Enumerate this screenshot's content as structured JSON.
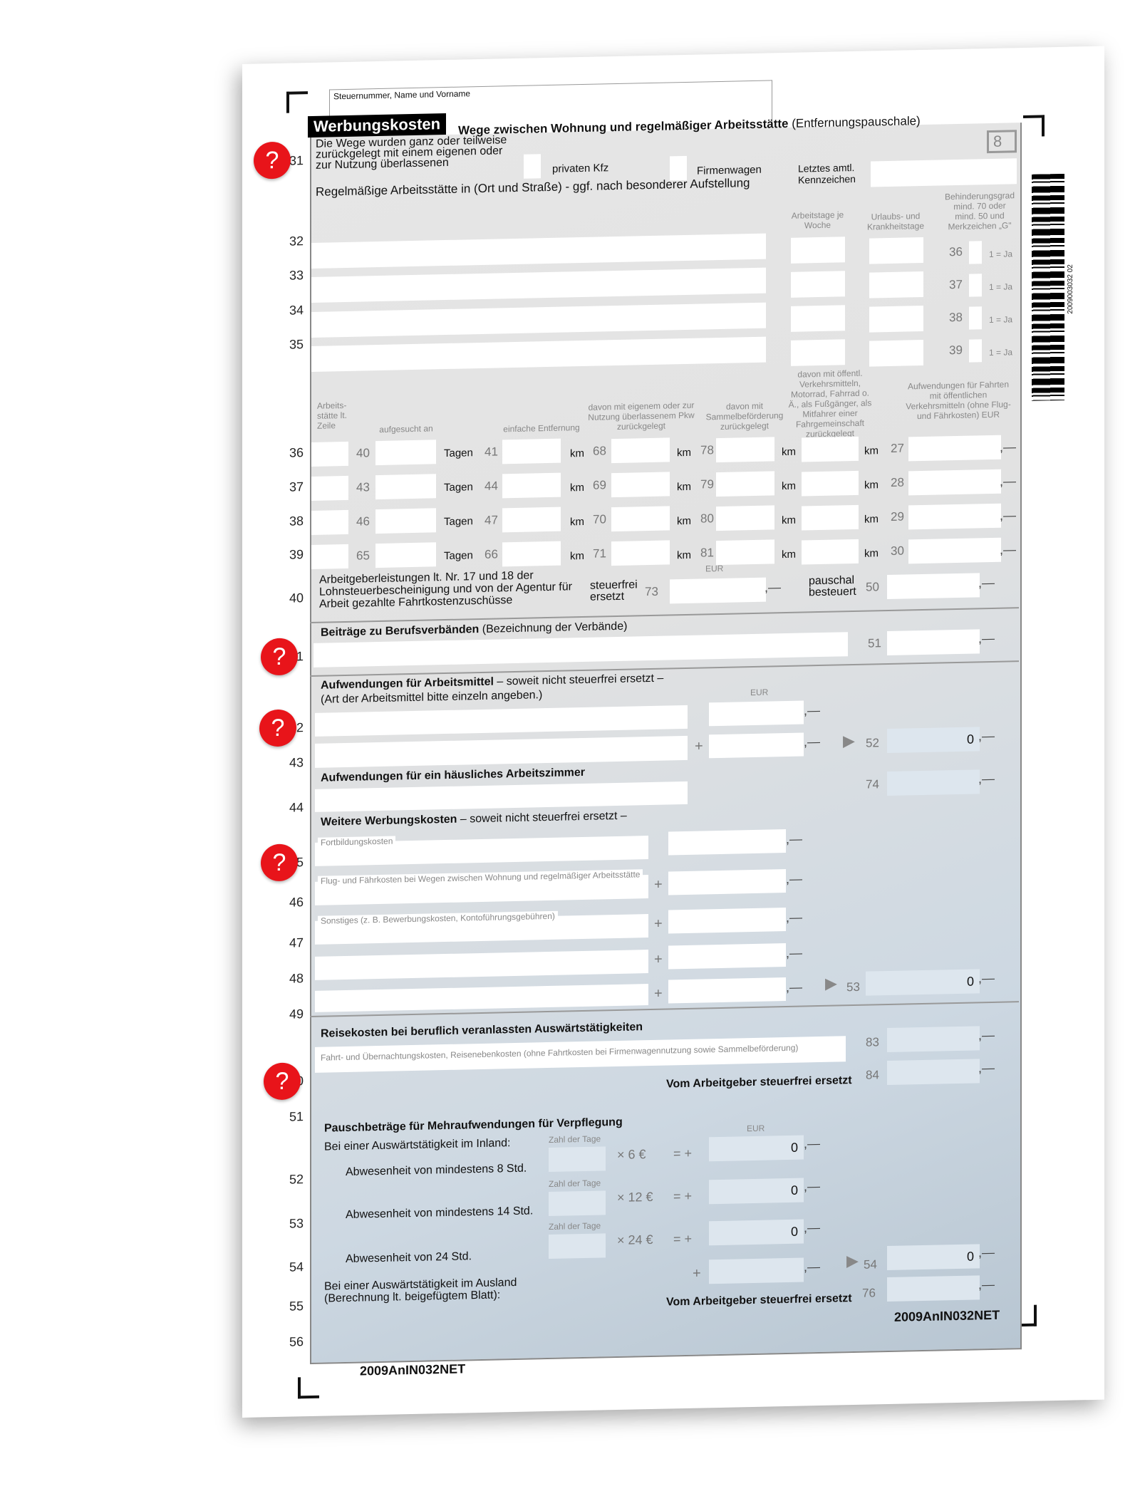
{
  "header": {
    "taxpayer_label": "Steuernummer, Name und Vorname",
    "section_tab": "Werbungskosten",
    "title_bold": "Wege zwischen Wohnung und regelmäßiger Arbeitsstätte",
    "title_normal": "(Entfernungspauschale)",
    "page_number": "8"
  },
  "line_numbers": [
    "31",
    "32",
    "33",
    "34",
    "35",
    "36",
    "37",
    "38",
    "39",
    "40",
    "41",
    "42",
    "43",
    "44",
    "45",
    "46",
    "47",
    "48",
    "49",
    "50",
    "51",
    "52",
    "53",
    "54",
    "55",
    "56"
  ],
  "help_icon": "?",
  "s31": {
    "intro": "Die Wege wurden ganz oder teilweise zurückgelegt mit einem eigenen oder zur Nutzung überlassenen",
    "private_car": "privaten Kfz",
    "company_car": "Firmenwagen",
    "plate_label": "Letztes amtl. Kennzeichen",
    "workplace_label": "Regelmäßige Arbeitsstätte in (Ort und Straße) - ggf. nach besonderer Aufstellung",
    "col_workdays": "Arbeitstage je Woche",
    "col_leave": "Urlaubs- und Krankheitstage",
    "col_disability": "Behinderungsgrad mind. 70 oder mind. 50 und Merkzeichen „G\"",
    "disability_rows": [
      {
        "code": "36",
        "hint": "1 = Ja"
      },
      {
        "code": "37",
        "hint": "1 = Ja"
      },
      {
        "code": "38",
        "hint": "1 = Ja"
      },
      {
        "code": "39",
        "hint": "1 = Ja"
      }
    ]
  },
  "trips": {
    "col_workplace": "Arbeits- stätte lt. Zeile",
    "col_visited": "aufgesucht an",
    "col_distance": "einfache Entfernung",
    "col_car": "davon mit eigenem oder zur Nutzung überlassenem Pkw zurückgelegt",
    "col_shuttle": "davon mit Sammelbeförderung zurückgelegt",
    "col_public": "davon mit öffentl. Verkehrsmitteln, Motorrad, Fahrrad o. Ä., als Fußgänger, als Mitfahrer einer Fahrgemeinschaft zurückgelegt",
    "col_costs": "Aufwendungen für Fahrten mit öffentlichen Verkehrsmitteln (ohne Flug- und Fährkosten) EUR",
    "days_unit": "Tagen",
    "km_unit": "km",
    "rows": [
      {
        "c1": "40",
        "c2": "41",
        "c3": "68",
        "c4": "78",
        "c5": "27"
      },
      {
        "c1": "43",
        "c2": "44",
        "c3": "69",
        "c4": "79",
        "c5": "28"
      },
      {
        "c1": "46",
        "c2": "47",
        "c3": "70",
        "c4": "80",
        "c5": "29"
      },
      {
        "c1": "65",
        "c2": "66",
        "c3": "71",
        "c4": "81",
        "c5": "30"
      }
    ],
    "employer_text": "Arbeitgeberleistungen lt. Nr. 17 und 18 der Lohnsteuerbescheinigung und von der Agentur für Arbeit gezahlte Fahrtkostenzuschüsse",
    "eur": "EUR",
    "taxfree_label": "steuerfrei ersetzt",
    "taxfree_code": "73",
    "flat_label": "pauschal besteuert",
    "flat_code": "50"
  },
  "unions": {
    "title_bold": "Beiträge zu Berufsverbänden",
    "title_normal": "(Bezeichnung der Verbände)",
    "code": "51"
  },
  "tools": {
    "title_bold": "Aufwendungen für Arbeitsmittel",
    "title_normal": "– soweit nicht steuerfrei ersetzt –",
    "subtitle": "(Art der Arbeitsmittel bitte einzeln angeben.)",
    "eur": "EUR",
    "plus": "+",
    "code": "52",
    "total": "0"
  },
  "office": {
    "title": "Aufwendungen für ein häusliches Arbeitszimmer",
    "code": "74"
  },
  "other": {
    "title_bold": "Weitere Werbungskosten",
    "title_normal": "– soweit nicht steuerfrei ersetzt –",
    "labels": [
      "Fortbildungskosten",
      "Flug- und Fährkosten bei Wegen zwischen Wohnung und regelmäßiger Arbeitsstätte",
      "Sonstiges (z. B. Bewerbungskosten, Kontoführungsgebühren)"
    ],
    "plus": "+",
    "code": "53",
    "total": "0"
  },
  "travel": {
    "title": "Reisekosten bei beruflich veranlassten Auswärtstätigkeiten",
    "hint": "Fahrt- und Übernachtungskosten, Reisenebenkosten (ohne Fahrtkosten bei Firmenwagennutzung sowie Sammelbeförderung)",
    "code": "83",
    "reimbursed_label": "Vom Arbeitgeber steuerfrei ersetzt",
    "reimbursed_code": "84"
  },
  "meals": {
    "title": "Pauschbeträge für Mehraufwendungen für Verpflegung",
    "domestic": "Bei einer Auswärtstätigkeit im Inland:",
    "eur": "EUR",
    "days_label": "Zahl der Tage",
    "rows": [
      {
        "label": "Abwesenheit von mindestens 8 Std.",
        "rate": "× 6 €",
        "eq": "= +",
        "value": "0"
      },
      {
        "label": "Abwesenheit von mindestens 14 Std.",
        "rate": "× 12 €",
        "eq": "= +",
        "value": "0"
      },
      {
        "label": "Abwesenheit von 24 Std.",
        "rate": "× 24 €",
        "eq": "= +",
        "value": "0"
      }
    ],
    "abroad": "Bei einer Auswärtstätigkeit im Ausland (Berechnung lt. beigefügtem Blatt):",
    "plus": "+",
    "code": "54",
    "total": "0",
    "reimbursed_label": "Vom Arbeitgeber steuerfrei ersetzt",
    "reimbursed_code": "76"
  },
  "amount_suffix": ",—",
  "footer": {
    "form_code_right": "2009AnIN032NET",
    "form_code_left": "2009AnIN032NET"
  },
  "barcode": {
    "number": "2009003032 02"
  },
  "colors": {
    "form_bg": "#e4e4e4",
    "field": "#ffffff",
    "help_red": "#e8141a",
    "tab_black": "#000000"
  }
}
